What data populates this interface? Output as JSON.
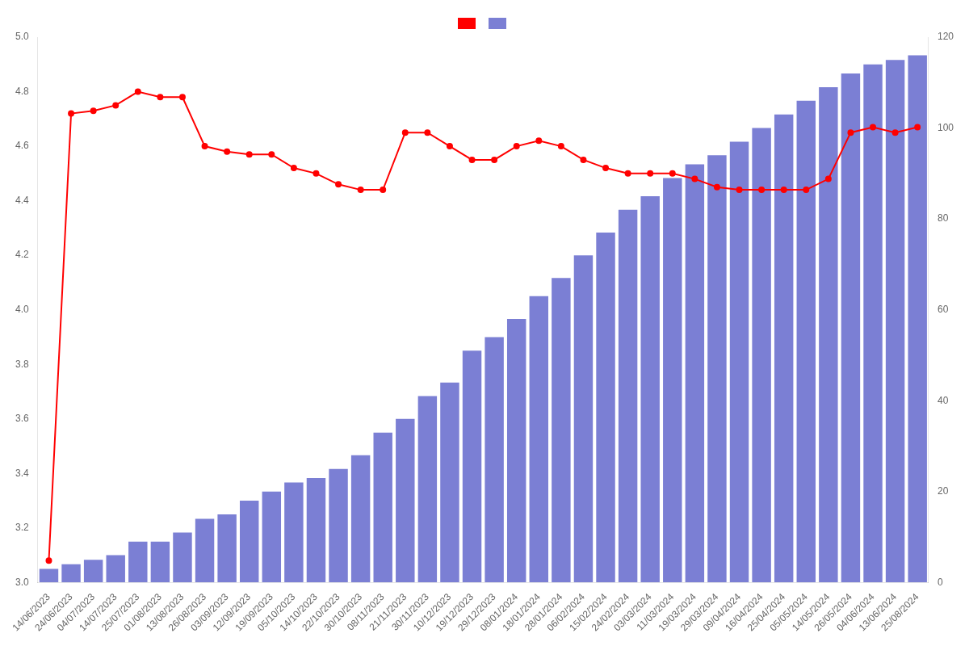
{
  "chart_data": {
    "type": "bar",
    "categories": [
      "14/06/2023",
      "24/06/2023",
      "04/07/2023",
      "14/07/2023",
      "25/07/2023",
      "01/08/2023",
      "13/08/2023",
      "26/08/2023",
      "03/09/2023",
      "12/09/2023",
      "19/09/2023",
      "05/10/2023",
      "14/10/2023",
      "22/10/2023",
      "30/10/2023",
      "08/11/2023",
      "21/11/2023",
      "30/11/2023",
      "10/12/2023",
      "19/12/2023",
      "29/12/2023",
      "08/01/2024",
      "18/01/2024",
      "28/01/2024",
      "06/02/2024",
      "15/02/2024",
      "24/02/2024",
      "03/03/2024",
      "11/03/2024",
      "19/03/2024",
      "29/03/2024",
      "09/04/2024",
      "16/04/2024",
      "25/04/2024",
      "05/05/2024",
      "14/05/2024",
      "26/05/2024",
      "04/06/2024",
      "13/06/2024",
      "25/08/2024"
    ],
    "series": [
      {
        "type": "line",
        "color": "#ff0000",
        "marker": "circle",
        "line_style": "solid",
        "values": [
          3.08,
          4.72,
          4.73,
          4.75,
          4.8,
          4.78,
          4.78,
          4.6,
          4.58,
          4.57,
          4.57,
          4.52,
          4.5,
          4.46,
          4.44,
          4.44,
          4.65,
          4.65,
          4.6,
          4.55,
          4.55,
          4.6,
          4.62,
          4.6,
          4.55,
          4.52,
          4.5,
          4.5,
          4.5,
          4.48,
          4.45,
          4.44,
          4.44,
          4.44,
          4.44,
          4.48,
          4.65,
          4.67,
          4.65,
          4.67
        ]
      },
      {
        "type": "bar",
        "color": "#7b7fd4",
        "axis": "y2",
        "values": [
          3,
          4,
          5,
          6,
          9,
          9,
          11,
          14,
          15,
          18,
          20,
          22,
          23,
          25,
          28,
          33,
          36,
          41,
          44,
          51,
          54,
          58,
          63,
          67,
          72,
          77,
          82,
          85,
          89,
          92,
          94,
          97,
          100,
          103,
          106,
          109,
          112,
          114,
          115,
          116
        ]
      }
    ],
    "ylim": [
      3.0,
      5.0
    ],
    "yticks": [
      {
        "value": 3.0,
        "label": "3.0"
      },
      3.2,
      3.4,
      3.6,
      3.8,
      {
        "value": 4.0,
        "label": "4.0"
      },
      4.2,
      4.4,
      4.6,
      4.8,
      {
        "value": 5.0,
        "label": "5.0"
      }
    ],
    "y2lim": [
      0,
      120
    ],
    "y2ticks": [
      0,
      20,
      40,
      60,
      80,
      100,
      120
    ],
    "grid": false,
    "legend": "top"
  }
}
